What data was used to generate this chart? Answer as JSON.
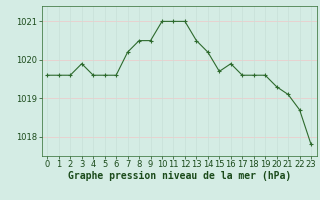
{
  "x": [
    0,
    1,
    2,
    3,
    4,
    5,
    6,
    7,
    8,
    9,
    10,
    11,
    12,
    13,
    14,
    15,
    16,
    17,
    18,
    19,
    20,
    21,
    22,
    23
  ],
  "y": [
    1019.6,
    1019.6,
    1019.6,
    1019.9,
    1019.6,
    1019.6,
    1019.6,
    1020.2,
    1020.5,
    1020.5,
    1021.0,
    1021.0,
    1021.0,
    1020.5,
    1020.2,
    1019.7,
    1019.9,
    1019.6,
    1019.6,
    1019.6,
    1019.3,
    1019.1,
    1018.7,
    1017.8
  ],
  "line_color": "#2d6a2d",
  "marker": "+",
  "marker_size": 3,
  "bg_color": "#d4ece4",
  "grid_color_h": "#f0c8c8",
  "grid_color_v": "#c8e0d8",
  "xlabel": "Graphe pression niveau de la mer (hPa)",
  "xlabel_color": "#1a4a1a",
  "tick_label_color": "#1a4a1a",
  "yticks": [
    1018,
    1019,
    1020,
    1021
  ],
  "xtick_labels": [
    "0",
    "1",
    "2",
    "3",
    "4",
    "5",
    "6",
    "7",
    "8",
    "9",
    "10",
    "11",
    "12",
    "13",
    "14",
    "15",
    "16",
    "17",
    "18",
    "19",
    "20",
    "21",
    "22",
    "23"
  ],
  "ylim": [
    1017.5,
    1021.4
  ],
  "xlim": [
    -0.5,
    23.5
  ],
  "axis_color": "#2d6a2d",
  "font_size_xlabel": 7.0,
  "font_size_ticks": 6.0,
  "linewidth": 0.8,
  "marker_linewidth": 0.8
}
